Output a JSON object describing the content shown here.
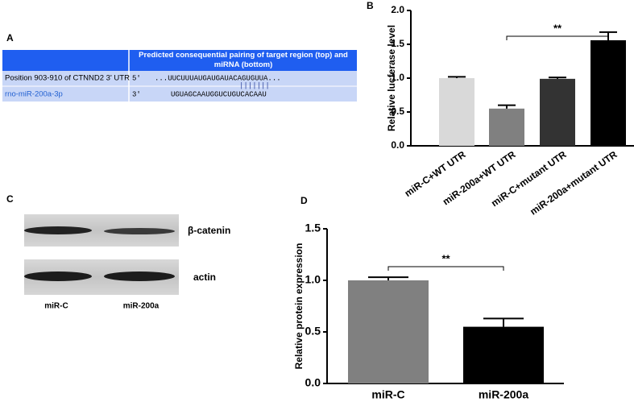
{
  "panel_labels": [
    "A",
    "B",
    "C",
    "D"
  ],
  "table": {
    "header": {
      "title": "Predicted consequential pairing of target region (top) and miRNA (bottom)"
    },
    "rows": [
      [
        "Position 903-910 of CTNND2 3' UTR",
        "5'",
        "...UUCUUUAUGAUGAUACAGUGUUA..."
      ],
      [
        "rno-miR-200a-3p",
        "3'",
        "UGUAGCAAUGGUCUGUCACAAU"
      ]
    ],
    "pairing": "|||||||"
  },
  "blot": {
    "bands": [
      "β-catenin",
      "actin"
    ],
    "lanes": [
      "miR-C",
      "miR-200a"
    ]
  },
  "chart_data": [
    {
      "type": "bar",
      "y_label": "Relative lucferase level",
      "categories": [
        "miR-C+WT UTR",
        "miR-200a+WT UTR",
        "miR-C+mutant UTR",
        "miR-200a+mutant UTR"
      ],
      "values": [
        1.0,
        0.55,
        0.99,
        1.56
      ],
      "errors": [
        0.02,
        0.05,
        0.02,
        0.12
      ],
      "colors": [
        "#d9d9d9",
        "#808080",
        "#333333",
        "#000000"
      ],
      "ylim": [
        0,
        2
      ],
      "yticks": [
        {
          "value": 0,
          "label": "0.0"
        },
        0.5,
        {
          "value": 1,
          "label": "1.0"
        },
        1.5,
        {
          "value": 2,
          "label": "2.0"
        }
      ],
      "annotation": "**"
    },
    {
      "type": "bar",
      "y_label": "Relative protein expression",
      "categories": [
        "miR-C",
        "miR-200a"
      ],
      "values": [
        1.0,
        0.55
      ],
      "errors": [
        0.03,
        0.08
      ],
      "colors": [
        "#808080",
        "#000000"
      ],
      "ylim": [
        0,
        1.5
      ],
      "yticks": [
        {
          "value": 0,
          "label": "0.0"
        },
        0.5,
        {
          "value": 1,
          "label": "1.0"
        },
        1.5
      ],
      "annotation": "**"
    }
  ]
}
